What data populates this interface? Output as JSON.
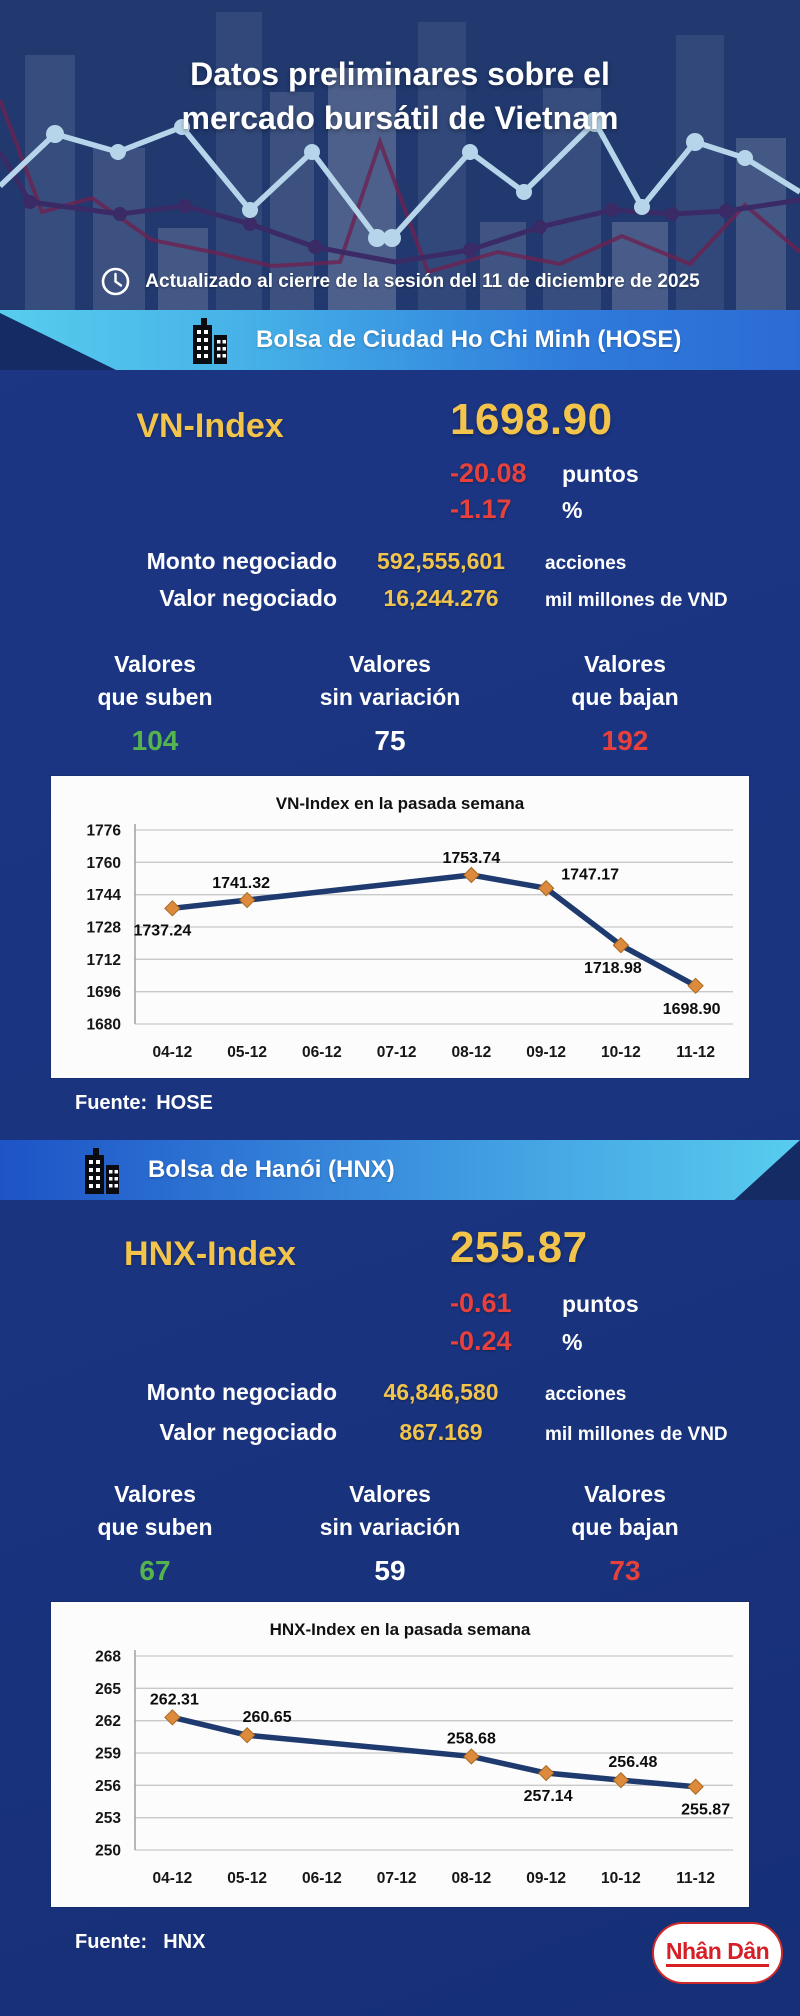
{
  "palette": {
    "background_navy": "#1a3480",
    "header_navy": "#21396f",
    "banner_cyan": "#58cdee",
    "banner_blue": "#2c6bd4",
    "accent_gold": "#f2c44c",
    "negative_red": "#e8413c",
    "positive_green": "#56b44e",
    "chart_line_navy": "#1e3a6e",
    "chart_marker_orange": "#dd8a3c",
    "logo_red": "#d61f26"
  },
  "header": {
    "title_line1": "Datos preliminares sobre el",
    "title_line2": "mercado bursátil de Vietnam",
    "updated_text": "Actualizado al cierre de la sesión del 11 de diciembre de 2025"
  },
  "hose": {
    "banner_title": "Bolsa de Ciudad Ho Chi Minh (HOSE)",
    "index_label": "VN-Index",
    "index_value": "1698.90",
    "change_points": "-20.08",
    "change_points_unit": "puntos",
    "change_percent": "-1.17",
    "change_percent_unit": "%",
    "volume_label": "Monto negociado",
    "volume_value": "592,555,601",
    "volume_unit": "acciones",
    "turnover_label": "Valor negociado",
    "turnover_value": "16,244.276",
    "turnover_unit": "mil millones de VND",
    "advancers_label_line1": "Valores",
    "advancers_label_line2": "que suben",
    "advancers_value": "104",
    "unchanged_label_line1": "Valores",
    "unchanged_label_line2": "sin variación",
    "unchanged_value": "75",
    "decliners_label_line1": "Valores",
    "decliners_label_line2": "que bajan",
    "decliners_value": "192",
    "source_label": "Fuente:",
    "source_value": "HOSE"
  },
  "hnx": {
    "banner_title": "Bolsa de Hanói (HNX)",
    "index_label": "HNX-Index",
    "index_value": "255.87",
    "change_points": "-0.61",
    "change_points_unit": "puntos",
    "change_percent": "-0.24",
    "change_percent_unit": "%",
    "volume_label": "Monto negociado",
    "volume_value": "46,846,580",
    "volume_unit": "acciones",
    "turnover_label": "Valor negociado",
    "turnover_value": "867.169",
    "turnover_unit": "mil millones de VND",
    "advancers_label_line1": "Valores",
    "advancers_label_line2": "que suben",
    "advancers_value": "67",
    "unchanged_label_line1": "Valores",
    "unchanged_label_line2": "sin variación",
    "unchanged_value": "59",
    "decliners_label_line1": "Valores",
    "decliners_label_line2": "que bajan",
    "decliners_value": "73",
    "source_label": "Fuente:",
    "source_value": "HNX"
  },
  "chart_data": [
    {
      "type": "line",
      "title": "VN-Index en la pasada semana",
      "categories": [
        "04-12",
        "05-12",
        "06-12",
        "07-12",
        "08-12",
        "09-12",
        "10-12",
        "11-12"
      ],
      "points": [
        {
          "cat": "04-12",
          "y": 1737.24,
          "label": "1737.24",
          "label_offset": [
            -10,
            27
          ]
        },
        {
          "cat": "05-12",
          "y": 1741.32,
          "label": "1741.32",
          "label_offset": [
            -6,
            -12
          ]
        },
        {
          "cat": "08-12",
          "y": 1753.74,
          "label": "1753.74",
          "label_offset": [
            0,
            -12
          ]
        },
        {
          "cat": "09-12",
          "y": 1747.17,
          "label": "1747.17",
          "label_offset": [
            44,
            -9
          ]
        },
        {
          "cat": "10-12",
          "y": 1718.98,
          "label": "1718.98",
          "label_offset": [
            -8,
            28
          ]
        },
        {
          "cat": "11-12",
          "y": 1698.9,
          "label": "1698.90",
          "label_offset": [
            -4,
            28
          ]
        }
      ],
      "y_ticks": [
        1776,
        1760,
        1744,
        1728,
        1712,
        1696,
        1680
      ],
      "ylim": [
        1680,
        1776
      ],
      "grid": true,
      "legend": false,
      "line_color": "#1e3a6e",
      "marker_color": "#dd8a3c"
    },
    {
      "type": "line",
      "title": "HNX-Index en la pasada semana",
      "categories": [
        "04-12",
        "05-12",
        "06-12",
        "07-12",
        "08-12",
        "09-12",
        "10-12",
        "11-12"
      ],
      "points": [
        {
          "cat": "04-12",
          "y": 262.31,
          "label": "262.31",
          "label_offset": [
            2,
            -13
          ]
        },
        {
          "cat": "05-12",
          "y": 260.65,
          "label": "260.65",
          "label_offset": [
            20,
            -13
          ]
        },
        {
          "cat": "08-12",
          "y": 258.68,
          "label": "258.68",
          "label_offset": [
            0,
            -13
          ]
        },
        {
          "cat": "09-12",
          "y": 257.14,
          "label": "257.14",
          "label_offset": [
            2,
            28
          ]
        },
        {
          "cat": "10-12",
          "y": 256.48,
          "label": "256.48",
          "label_offset": [
            12,
            -13
          ]
        },
        {
          "cat": "11-12",
          "y": 255.87,
          "label": "255.87",
          "label_offset": [
            10,
            28
          ]
        }
      ],
      "y_ticks": [
        268,
        265,
        262,
        259,
        256,
        253,
        250
      ],
      "ylim": [
        250,
        268
      ],
      "grid": true,
      "legend": false,
      "line_color": "#1e3a6e",
      "marker_color": "#dd8a3c"
    }
  ],
  "footer": {
    "logo_text": "Nhân Dân"
  }
}
